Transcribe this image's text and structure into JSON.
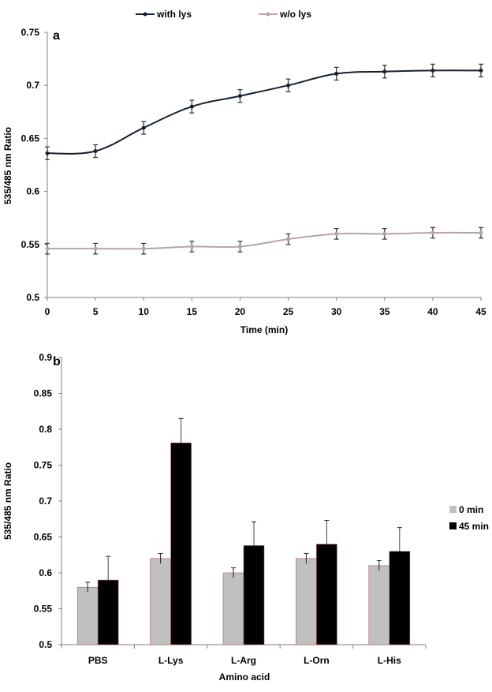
{
  "chart_data": [
    {
      "panel": "a",
      "type": "line",
      "x": [
        0,
        5,
        10,
        15,
        20,
        25,
        30,
        35,
        40,
        45
      ],
      "series": [
        {
          "name": "with lys",
          "color": "#17202e",
          "values": [
            0.636,
            0.638,
            0.66,
            0.68,
            0.69,
            0.7,
            0.711,
            0.713,
            0.714,
            0.714
          ],
          "errors": [
            0.006,
            0.006,
            0.006,
            0.006,
            0.006,
            0.006,
            0.006,
            0.006,
            0.006,
            0.006
          ]
        },
        {
          "name": "w/o lys",
          "color": "#b9a3a7",
          "values": [
            0.546,
            0.546,
            0.546,
            0.548,
            0.548,
            0.555,
            0.56,
            0.56,
            0.561,
            0.561
          ],
          "errors": [
            0.005,
            0.005,
            0.005,
            0.005,
            0.005,
            0.005,
            0.005,
            0.005,
            0.005,
            0.005
          ]
        }
      ],
      "xlabel": "Time  (min)",
      "ylabel": "535/485 nm  Ratio",
      "xlim": [
        0,
        45
      ],
      "ylim": [
        0.5,
        0.75
      ],
      "xticks": [
        0,
        5,
        10,
        15,
        20,
        25,
        30,
        35,
        40,
        45
      ],
      "yticks": [
        0.5,
        0.55,
        0.6,
        0.65,
        0.7,
        0.75
      ],
      "ytick_labels": [
        "0.5",
        "0.55",
        "0.6",
        "0.65",
        "0.7",
        "0.75"
      ],
      "legend": "top"
    },
    {
      "panel": "b",
      "type": "bar",
      "categories": [
        "PBS",
        "L-Lys",
        "L-Arg",
        "L-Orn",
        "L-His"
      ],
      "series": [
        {
          "name": "0 min",
          "color": "#c0c0c0",
          "values": [
            0.58,
            0.62,
            0.6,
            0.62,
            0.61
          ],
          "errors": [
            0.007,
            0.007,
            0.007,
            0.007,
            0.007
          ]
        },
        {
          "name": "45 min",
          "color": "#000000",
          "values": [
            0.59,
            0.781,
            0.638,
            0.64,
            0.63
          ],
          "errors": [
            0.033,
            0.034,
            0.033,
            0.033,
            0.033
          ]
        }
      ],
      "xlabel": "Amino acid",
      "ylabel": "535/485 nm  Ratio",
      "ylim": [
        0.5,
        0.9
      ],
      "yticks": [
        0.5,
        0.55,
        0.6,
        0.65,
        0.7,
        0.75,
        0.8,
        0.85,
        0.9
      ],
      "ytick_labels": [
        "0.5",
        "0.55",
        "0.6",
        "0.65",
        "0.7",
        "0.75",
        "0.8",
        "0.85",
        "0.9"
      ],
      "legend": "right"
    }
  ]
}
